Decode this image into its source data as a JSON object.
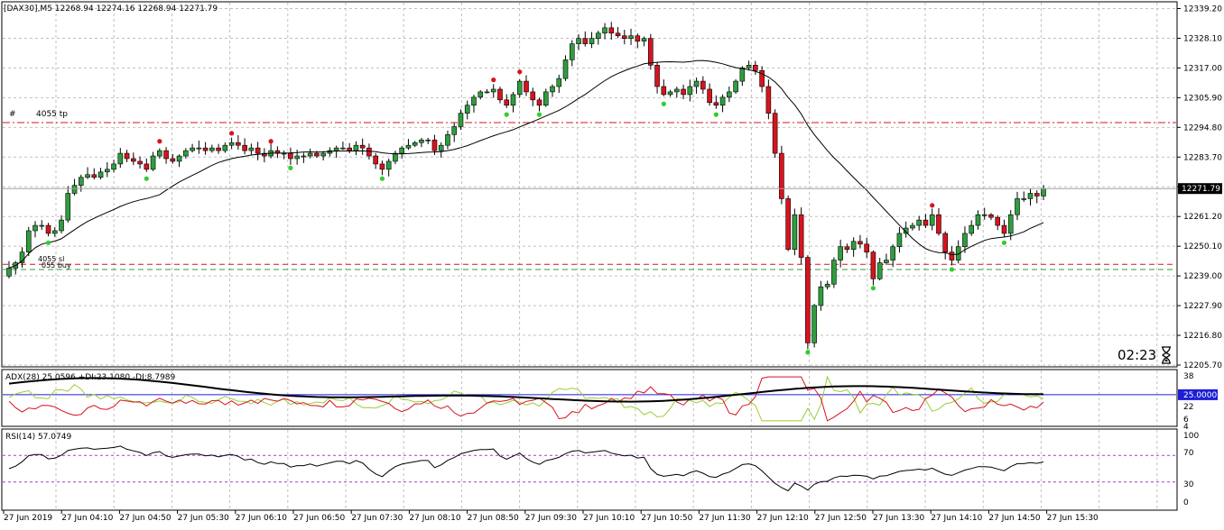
{
  "header": {
    "main_title": "[DAX30],M5  12268.94 12274.16 12268.94 12271.79",
    "adx_title": "ADX(28) 25.0596 +DI:23.1080 -DI:8.7989",
    "rsi_title": "RSI(14) 57.0749"
  },
  "countdown": "02:23",
  "colors": {
    "bull_candle": "#2e9e3e",
    "bear_candle": "#d8131e",
    "ma_line": "#000000",
    "level_red": "#d8131e",
    "level_green": "#2e9e3e",
    "adx_line": "#000000",
    "plus_di": "#9acd32",
    "minus_di": "#d8131e",
    "adx_level": "#1d1dd8",
    "rsi_line": "#000000",
    "rsi_level": "#a040c0",
    "grid": "#c0c0c0"
  },
  "main_axis": {
    "ticks": [
      "12339.20",
      "12328.10",
      "12317.00",
      "12305.90",
      "12294.80",
      "12283.70",
      "12272.60",
      "12261.20",
      "12250.10",
      "12239.00",
      "12227.90",
      "12216.80",
      "12205.70"
    ],
    "price_badge": "12271.79",
    "ylim": [
      12205.7,
      12339.2
    ]
  },
  "adx_axis": {
    "ticks": [
      "38",
      "22",
      "6",
      "4"
    ],
    "level_badge": "25.0000",
    "level": 25
  },
  "rsi_axis": {
    "ticks": [
      "100",
      "70",
      "30",
      "0"
    ],
    "levels": [
      70,
      30
    ]
  },
  "time_labels": [
    "27 Jun 2019",
    "27 Jun 04:10",
    "27 Jun 04:50",
    "27 Jun 05:30",
    "27 Jun 06:10",
    "27 Jun 06:50",
    "27 Jun 07:30",
    "27 Jun 08:10",
    "27 Jun 08:50",
    "27 Jun 09:30",
    "27 Jun 10:10",
    "27 Jun 10:50",
    "27 Jun 11:30",
    "27 Jun 12:10",
    "27 Jun 12:50",
    "27 Jun 13:30",
    "27 Jun 14:10",
    "27 Jun 14:50",
    "27 Jun 15:30"
  ],
  "levels": {
    "tp_label_hash": "#",
    "tp_label": "4055 tp",
    "tp_price": 12296.5,
    "entry_label_top": "4055 sl",
    "entry_label_bottom": "055 buy",
    "sl_price": 12243.4,
    "buy_price": 12241.5
  },
  "chart_data": {
    "type": "candlestick",
    "closes": [
      12242,
      12244,
      12248,
      12256,
      12258,
      12258,
      12255,
      12256,
      12260,
      12270,
      12273,
      12276,
      12277,
      12276,
      12278,
      12279,
      12281,
      12285,
      12283,
      12282,
      12281,
      12279,
      12284,
      12286,
      12283,
      12282,
      12284,
      12286,
      12287,
      12287,
      12286,
      12287,
      12286,
      12288,
      12289,
      12288,
      12286,
      12287,
      12285,
      12284,
      12286,
      12285,
      12285,
      12283,
      12284,
      12284,
      12285,
      12284,
      12285,
      12286,
      12287,
      12287,
      12286,
      12288,
      12287,
      12284,
      12281,
      12279,
      12282,
      12285,
      12287,
      12288,
      12289,
      12290,
      12290,
      12286,
      12288,
      12292,
      12295,
      12300,
      12303,
      12306,
      12308,
      12308,
      12309,
      12305,
      12303,
      12307,
      12312,
      12308,
      12305,
      12303,
      12308,
      12310,
      12313,
      12320,
      12326,
      12328,
      12326,
      12328,
      12330,
      12332,
      12330,
      12329,
      12328,
      12329,
      12327,
      12328,
      12318,
      12310,
      12307,
      12308,
      12309,
      12307,
      12310,
      12312,
      12309,
      12304,
      12303,
      12306,
      12308,
      12312,
      12317,
      12318,
      12316,
      12310,
      12300,
      12285,
      12268,
      12249,
      12262,
      12246,
      12214,
      12228,
      12235,
      12236,
      12245,
      12250,
      12249,
      12252,
      12251,
      12248,
      12238,
      12244,
      12245,
      12250,
      12255,
      12257,
      12258,
      12260,
      12258,
      12262,
      12255,
      12248,
      12245,
      12250,
      12255,
      12258,
      12262,
      12262,
      12261,
      12258,
      12255,
      12262,
      12268,
      12268,
      12270,
      12269,
      12271.79
    ],
    "ylim": [
      12205.7,
      12339.2
    ]
  }
}
